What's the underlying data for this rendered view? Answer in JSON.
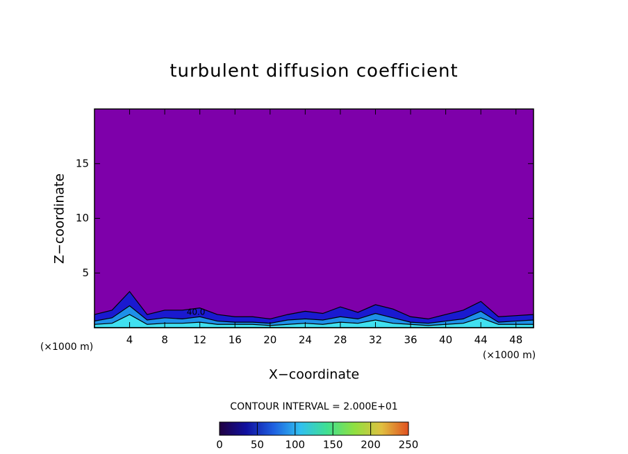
{
  "chart_data": {
    "type": "contour",
    "title": "turbulent diffusion coefficient",
    "x_label": "X−coordinate",
    "y_label": "Z−coordinate",
    "x_unit": "(×1000 m)",
    "y_unit": "(×1000 m)",
    "contour_interval_label": "CONTOUR INTERVAL = 2.000E+01",
    "contour_label": {
      "text": "40.0",
      "x": 10.5,
      "y": 1.4
    },
    "xlim": [
      0,
      50
    ],
    "ylim": [
      0,
      20
    ],
    "xticks": [
      4,
      8,
      12,
      16,
      20,
      24,
      28,
      32,
      36,
      40,
      44,
      48
    ],
    "yticks": [
      5,
      10,
      15
    ],
    "background_color": "#7e00aa",
    "x": [
      0,
      2,
      4,
      6,
      8,
      10,
      12,
      14,
      16,
      18,
      20,
      22,
      24,
      26,
      28,
      30,
      32,
      34,
      36,
      38,
      40,
      42,
      44,
      46,
      48,
      50
    ],
    "series": [
      {
        "color": "#1a1ad0",
        "values": [
          1.2,
          1.6,
          3.3,
          1.2,
          1.6,
          1.6,
          1.8,
          1.2,
          1.0,
          1.0,
          0.8,
          1.2,
          1.5,
          1.3,
          1.9,
          1.4,
          2.1,
          1.7,
          1.0,
          0.8,
          1.2,
          1.6,
          2.4,
          1.0,
          1.1,
          1.2
        ]
      },
      {
        "color": "#1e90e8",
        "values": [
          0.6,
          0.9,
          2.0,
          0.7,
          0.9,
          0.8,
          1.0,
          0.6,
          0.5,
          0.5,
          0.4,
          0.7,
          0.8,
          0.7,
          1.0,
          0.8,
          1.3,
          0.9,
          0.5,
          0.4,
          0.6,
          0.8,
          1.5,
          0.5,
          0.6,
          0.7
        ]
      },
      {
        "color": "#40e0f0",
        "values": [
          0.3,
          0.4,
          1.2,
          0.3,
          0.4,
          0.4,
          0.5,
          0.3,
          0.3,
          0.3,
          0.2,
          0.3,
          0.4,
          0.3,
          0.5,
          0.4,
          0.7,
          0.4,
          0.3,
          0.2,
          0.3,
          0.4,
          0.9,
          0.3,
          0.3,
          0.3
        ]
      }
    ],
    "colorbar": {
      "clim": [
        0,
        250
      ],
      "ticks": [
        0,
        50,
        100,
        150,
        200,
        250
      ],
      "colors": [
        "#200040",
        "#1010a0",
        "#1e60e0",
        "#30c0f0",
        "#40e090",
        "#90e040",
        "#e0c040",
        "#e05020"
      ]
    }
  }
}
